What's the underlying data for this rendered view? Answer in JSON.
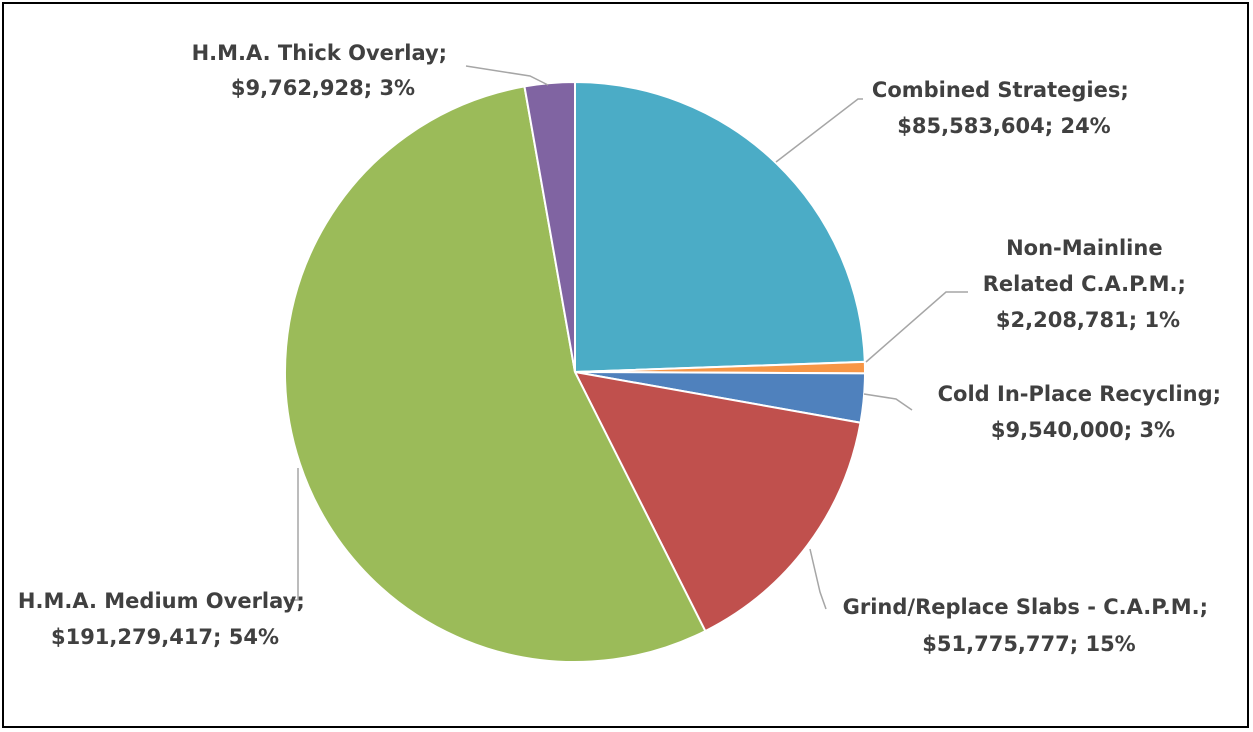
{
  "chart_data": {
    "type": "pie",
    "title": "",
    "slices": [
      {
        "name": "Combined Strategies",
        "value": 85583604,
        "value_label": "$85,583,604",
        "percent_label": "24%",
        "color": "#4BACC6"
      },
      {
        "name": "Non-Mainline Related C.A.P.M.",
        "value": 2208781,
        "value_label": "$2,208,781",
        "percent_label": "1%",
        "color": "#F79646"
      },
      {
        "name": "Cold In-Place Recycling",
        "value": 9540000,
        "value_label": "$9,540,000",
        "percent_label": "3%",
        "color": "#4F81BD"
      },
      {
        "name": "Grind/Replace Slabs - C.A.P.M.",
        "value": 51775777,
        "value_label": "$51,775,777",
        "percent_label": "15%",
        "color": "#C0504D"
      },
      {
        "name": "H.M.A. Medium Overlay",
        "value": 191279417,
        "value_label": "$191,279,417",
        "percent_label": "54%",
        "color": "#9BBB59"
      },
      {
        "name": "H.M.A. Thick Overlay",
        "value": 9762928,
        "value_label": "$9,762,928",
        "percent_label": "3%",
        "color": "#8064A2"
      }
    ],
    "labels": [
      {
        "line1": "Combined Strategies;",
        "line2": "$85,583,604; 24%"
      },
      {
        "line1": "Non-Mainline",
        "line2": "Related C.A.P.M.;",
        "line3": "$2,208,781; 1%"
      },
      {
        "line1": "Cold In-Place Recycling;",
        "line2": "$9,540,000; 3%"
      },
      {
        "line1": "Grind/Replace Slabs - C.A.P.M.;",
        "line2": "$51,775,777; 15%"
      },
      {
        "line1": "H.M.A. Medium Overlay;",
        "line2": "$191,279,417; 54%"
      },
      {
        "line1": "H.M.A. Thick Overlay;",
        "line2": "$9,762,928; 3%"
      }
    ],
    "legend": "none"
  }
}
